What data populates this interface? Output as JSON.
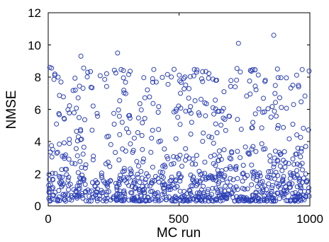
{
  "chart_data": {
    "type": "scatter",
    "title": "",
    "xlabel": "MC run",
    "ylabel": "NMSE",
    "xlim": [
      0,
      1000
    ],
    "ylim": [
      0,
      12
    ],
    "xticks": [
      0,
      500,
      1000
    ],
    "yticks": [
      0,
      2,
      4,
      6,
      8,
      10,
      12
    ],
    "xtick_labels": [
      "0",
      "500",
      "1000"
    ],
    "ytick_labels": [
      "0",
      "2",
      "4",
      "6",
      "8",
      "10",
      "12"
    ],
    "grid": false,
    "marker": "open-circle",
    "marker_color": "#2b3fb4",
    "point_count": 1000,
    "notable_points": [
      {
        "x": 6,
        "y": 8.6
      },
      {
        "x": 125,
        "y": 9.3
      },
      {
        "x": 265,
        "y": 9.5
      },
      {
        "x": 727,
        "y": 10.1
      },
      {
        "x": 862,
        "y": 10.6
      }
    ],
    "distribution": {
      "description": "Dense band of points between ~0.3 and ~3 across all runs, with a scattered upper band between ~5 and ~8.5 and few points between 3 and 5.",
      "bands": [
        {
          "range": [
            0.3,
            2.0
          ],
          "fraction": 0.6
        },
        {
          "range": [
            2.0,
            3.6
          ],
          "fraction": 0.15
        },
        {
          "range": [
            3.6,
            5.2
          ],
          "fraction": 0.07
        },
        {
          "range": [
            5.2,
            8.6
          ],
          "fraction": 0.18
        }
      ]
    }
  }
}
